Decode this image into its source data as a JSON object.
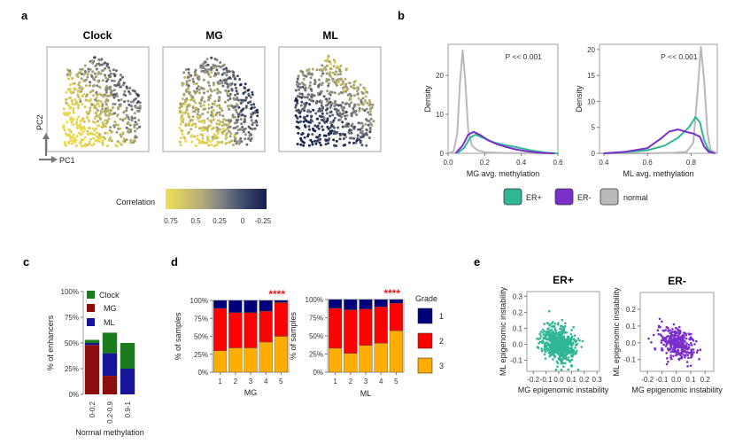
{
  "panel_labels": [
    "a",
    "b",
    "c",
    "d",
    "e"
  ],
  "panel_a": {
    "titles": [
      "Clock",
      "MG",
      "ML"
    ],
    "axis_pc1": "PC1",
    "axis_pc2": "PC2",
    "colorbar_title": "Correlation",
    "colorbar_ticks": [
      "0.75",
      "0.5",
      "0.25",
      "0",
      "-0.25"
    ],
    "colors": {
      "high": "#e8d84e",
      "mid": "#8a8a84",
      "low": "#18254d"
    }
  },
  "chart_data": [
    {
      "id": "b-left",
      "type": "line",
      "xlabel": "MG avg. methylation",
      "ylabel": "Density",
      "annotation": "P << 0.001",
      "xlim": [
        0,
        0.6
      ],
      "ylim": [
        0,
        28
      ],
      "x_ticks": [
        "0.0",
        "0.2",
        "0.4",
        "0.6"
      ],
      "y_ticks": [
        "0",
        "10",
        "20"
      ],
      "series": [
        {
          "name": "normal",
          "color": "#b9b9b9",
          "points": [
            [
              0.0,
              0
            ],
            [
              0.03,
              0.5
            ],
            [
              0.05,
              5
            ],
            [
              0.065,
              18
            ],
            [
              0.08,
              26.5
            ],
            [
              0.095,
              18
            ],
            [
              0.11,
              6
            ],
            [
              0.13,
              2
            ],
            [
              0.16,
              0.8
            ],
            [
              0.2,
              0.3
            ],
            [
              0.3,
              0.1
            ],
            [
              0.6,
              0
            ]
          ]
        },
        {
          "name": "ER+",
          "color": "#2fb795",
          "points": [
            [
              0.05,
              0
            ],
            [
              0.09,
              1.5
            ],
            [
              0.12,
              4
            ],
            [
              0.15,
              4.8
            ],
            [
              0.2,
              3.8
            ],
            [
              0.25,
              2.8
            ],
            [
              0.3,
              2.2
            ],
            [
              0.35,
              1.8
            ],
            [
              0.4,
              1.3
            ],
            [
              0.45,
              0.8
            ],
            [
              0.5,
              0.4
            ],
            [
              0.55,
              0.1
            ],
            [
              0.6,
              0
            ]
          ]
        },
        {
          "name": "ER-",
          "color": "#7b2fc8",
          "points": [
            [
              0.04,
              0
            ],
            [
              0.08,
              2
            ],
            [
              0.11,
              4.8
            ],
            [
              0.14,
              5.5
            ],
            [
              0.18,
              4.6
            ],
            [
              0.22,
              3.3
            ],
            [
              0.27,
              2.3
            ],
            [
              0.32,
              1.6
            ],
            [
              0.37,
              1.0
            ],
            [
              0.42,
              0.6
            ],
            [
              0.47,
              0.3
            ],
            [
              0.52,
              0.1
            ],
            [
              0.58,
              0
            ]
          ]
        }
      ]
    },
    {
      "id": "b-right",
      "type": "line",
      "xlabel": "ML avg. methylation",
      "ylabel": "Density",
      "annotation": "P << 0.001",
      "xlim": [
        0.38,
        0.92
      ],
      "ylim": [
        0,
        21
      ],
      "x_ticks": [
        "0.4",
        "0.6",
        "0.8"
      ],
      "y_ticks": [
        "0",
        "5",
        "10",
        "15",
        "20"
      ],
      "series": [
        {
          "name": "normal",
          "color": "#b9b9b9",
          "points": [
            [
              0.38,
              0
            ],
            [
              0.6,
              0
            ],
            [
              0.72,
              0.1
            ],
            [
              0.78,
              0.3
            ],
            [
              0.81,
              2
            ],
            [
              0.83,
              12
            ],
            [
              0.845,
              20.5
            ],
            [
              0.86,
              14
            ],
            [
              0.875,
              4
            ],
            [
              0.89,
              0.6
            ],
            [
              0.92,
              0
            ]
          ]
        },
        {
          "name": "ER+",
          "color": "#2fb795",
          "points": [
            [
              0.4,
              0
            ],
            [
              0.5,
              0.2
            ],
            [
              0.6,
              0.6
            ],
            [
              0.68,
              1.5
            ],
            [
              0.74,
              3
            ],
            [
              0.79,
              5
            ],
            [
              0.82,
              7
            ],
            [
              0.84,
              6
            ],
            [
              0.86,
              2.5
            ],
            [
              0.88,
              0.7
            ],
            [
              0.9,
              0
            ]
          ]
        },
        {
          "name": "ER-",
          "color": "#7b2fc8",
          "points": [
            [
              0.4,
              0
            ],
            [
              0.5,
              0.3
            ],
            [
              0.6,
              1.0
            ],
            [
              0.66,
              2.8
            ],
            [
              0.7,
              4.2
            ],
            [
              0.74,
              4.6
            ],
            [
              0.78,
              4.1
            ],
            [
              0.81,
              3.8
            ],
            [
              0.84,
              3.2
            ],
            [
              0.86,
              1.3
            ],
            [
              0.88,
              0.3
            ],
            [
              0.91,
              0
            ]
          ]
        }
      ]
    },
    {
      "id": "c",
      "type": "bar",
      "stacked": true,
      "ylabel": "% of enhancers",
      "xlabel": "Normal methylation",
      "categories": [
        "0-0.2",
        "0.2-0.9",
        "0.9-1"
      ],
      "y_ticks": [
        "0%",
        "25%",
        "50%",
        "75%",
        "100%"
      ],
      "ylim": [
        0,
        100
      ],
      "series": [
        {
          "name": "MG",
          "color": "#8b0d0d",
          "values": [
            48,
            18,
            0
          ]
        },
        {
          "name": "ML",
          "color": "#17159a",
          "values": [
            2,
            22,
            25
          ]
        },
        {
          "name": "Clock",
          "color": "#1b7a1b",
          "values": [
            3,
            20,
            25
          ]
        }
      ]
    },
    {
      "id": "d-mg",
      "type": "bar",
      "stacked": true,
      "ylabel": "% of samples",
      "xlabel": "MG",
      "categories": [
        "1",
        "2",
        "3",
        "4",
        "5"
      ],
      "y_ticks": [
        "0%",
        "25%",
        "50%",
        "75%",
        "100%"
      ],
      "ylim": [
        0,
        100
      ],
      "significance": "****",
      "series": [
        {
          "name": "3",
          "color": "#ffad00",
          "values": [
            30,
            34,
            34,
            42,
            50
          ]
        },
        {
          "name": "2",
          "color": "#ff0000",
          "values": [
            59,
            49,
            49,
            43,
            47
          ]
        },
        {
          "name": "1",
          "color": "#00007a",
          "values": [
            11,
            17,
            17,
            15,
            3
          ]
        }
      ]
    },
    {
      "id": "d-ml",
      "type": "bar",
      "stacked": true,
      "ylabel": "% of samples",
      "xlabel": "ML",
      "categories": [
        "1",
        "2",
        "3",
        "4",
        "5"
      ],
      "y_ticks": [
        "0%",
        "25%",
        "50%",
        "75%",
        "100%"
      ],
      "ylim": [
        0,
        100
      ],
      "significance": "****",
      "series": [
        {
          "name": "3",
          "color": "#ffad00",
          "values": [
            33,
            26,
            37,
            40,
            57
          ]
        },
        {
          "name": "2",
          "color": "#ff0000",
          "values": [
            55,
            60,
            50,
            50,
            38
          ]
        },
        {
          "name": "1",
          "color": "#00007a",
          "values": [
            12,
            14,
            13,
            10,
            5
          ]
        }
      ]
    },
    {
      "id": "e-erpos",
      "type": "scatter",
      "title": "ER+",
      "color": "#2fb795",
      "xlabel": "MG epigenomic instability",
      "ylabel": "ML epigenomic instability",
      "xlim": [
        -0.25,
        0.32
      ],
      "ylim": [
        -0.17,
        0.33
      ],
      "x_ticks": [
        "-0.2",
        "-0.1",
        "0.0",
        "0.1",
        "0.2",
        "0.3"
      ],
      "y_ticks": [
        "-0.1",
        "0.0",
        "0.1",
        "0.2",
        "0.3"
      ],
      "cloud": {
        "n": 700,
        "center": [
          0.0,
          0.0
        ],
        "spread": [
          0.08,
          0.065
        ]
      }
    },
    {
      "id": "e-erneg",
      "type": "scatter",
      "title": "ER-",
      "color": "#7b2fc8",
      "xlabel": "MG epigenomic instability",
      "ylabel": "ML epigenomic instability",
      "xlim": [
        -0.25,
        0.26
      ],
      "ylim": [
        -0.17,
        0.3
      ],
      "x_ticks": [
        "-0.2",
        "-0.1",
        "0.0",
        "0.1",
        "0.2"
      ],
      "y_ticks": [
        "-0.1",
        "0.0",
        "0.1",
        "0.2"
      ],
      "cloud": {
        "n": 320,
        "center": [
          0.0,
          0.0
        ],
        "spread": [
          0.07,
          0.06
        ]
      }
    }
  ],
  "legend_b": [
    {
      "label": "ER+",
      "color": "#2fb795"
    },
    {
      "label": "ER-",
      "color": "#7b2fc8"
    },
    {
      "label": "normal",
      "color": "#b9b9b9"
    }
  ],
  "legend_c": [
    "Clock",
    "MG",
    "ML"
  ],
  "legend_d": {
    "title": "Grade",
    "items": [
      "1",
      "2",
      "3"
    ]
  }
}
